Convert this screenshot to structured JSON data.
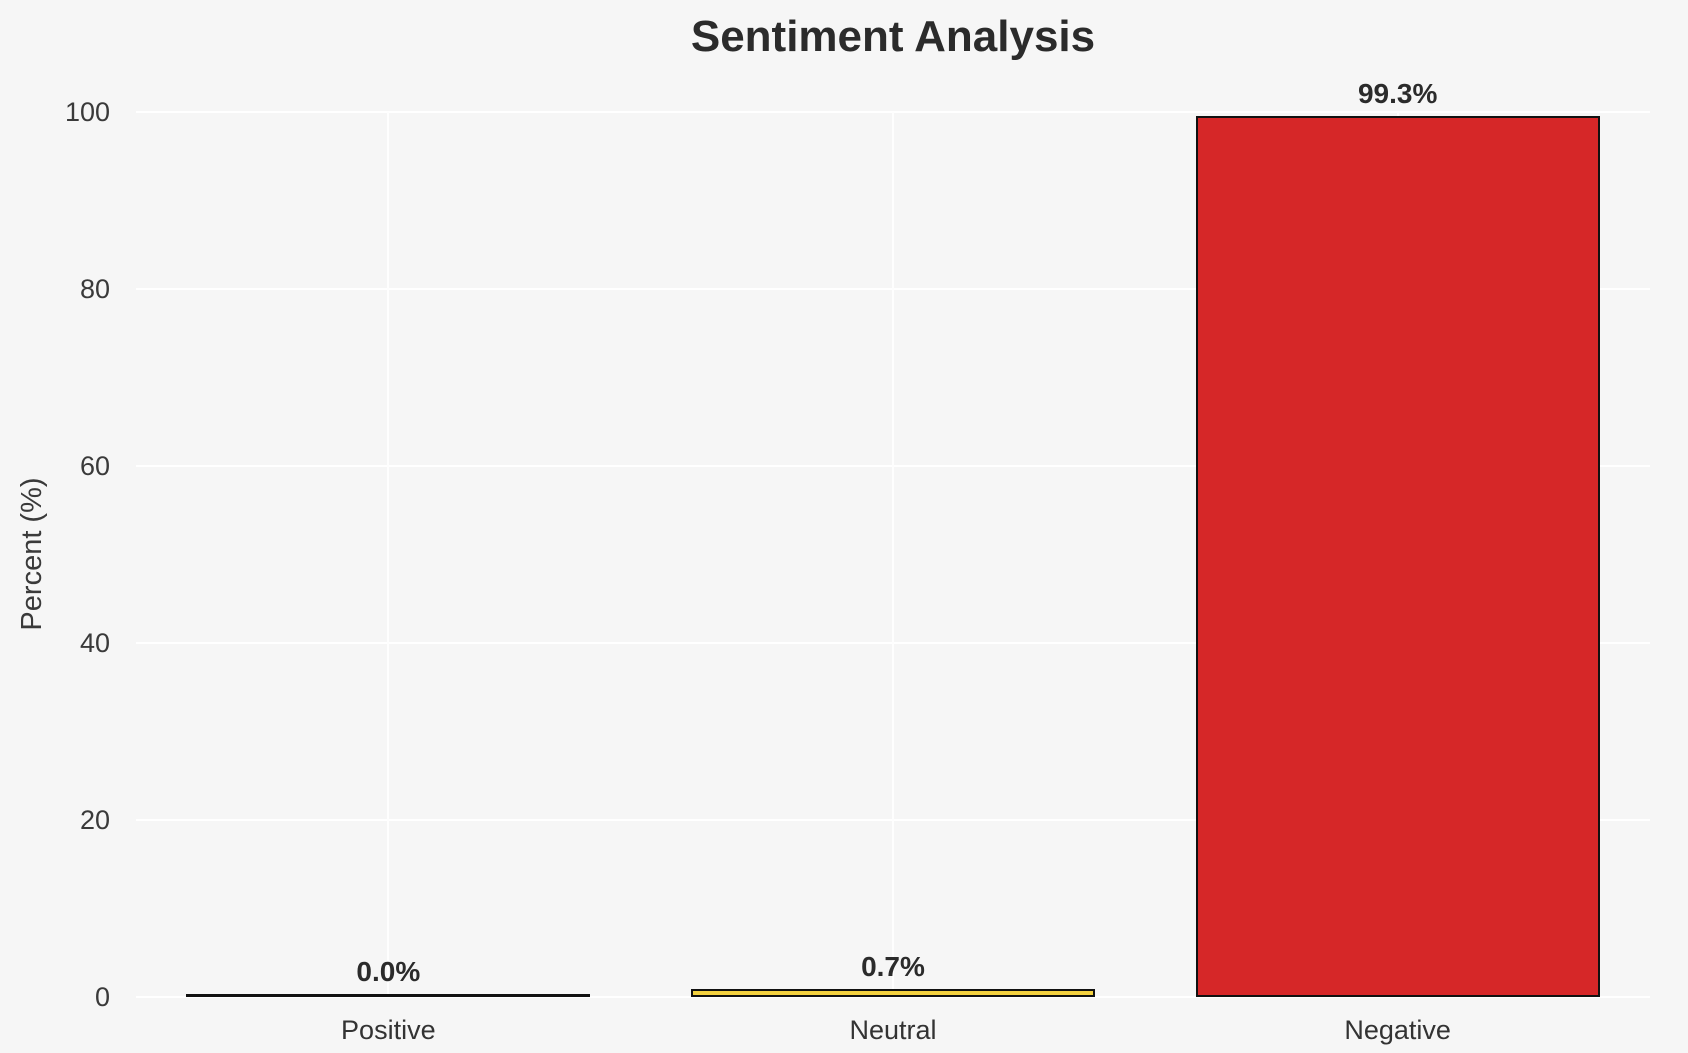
{
  "title": "Sentiment Analysis",
  "colors": {
    "background": "#f6f6f6",
    "gridline": "#ffffff",
    "bar_edge": "#111111",
    "tick_text": "#3a3a3a",
    "title_text": "#2b2b2b",
    "negative_bar": "#d62728",
    "neutral_bar": "#f3d13f"
  },
  "chart_data": {
    "type": "bar",
    "title": "Sentiment Analysis",
    "xlabel": "",
    "ylabel": "Percent (%)",
    "ylim": [
      0,
      100
    ],
    "yticks": [
      0,
      20,
      40,
      60,
      80,
      100
    ],
    "grid": true,
    "legend": "none",
    "categories": [
      "Positive",
      "Neutral",
      "Negative"
    ],
    "values": [
      0.0,
      0.7,
      99.3
    ],
    "value_labels": [
      "0.0%",
      "0.7%",
      "99.3%"
    ],
    "bar_colors": [
      "#2ca02c",
      "#f3d13f",
      "#d62728"
    ]
  }
}
